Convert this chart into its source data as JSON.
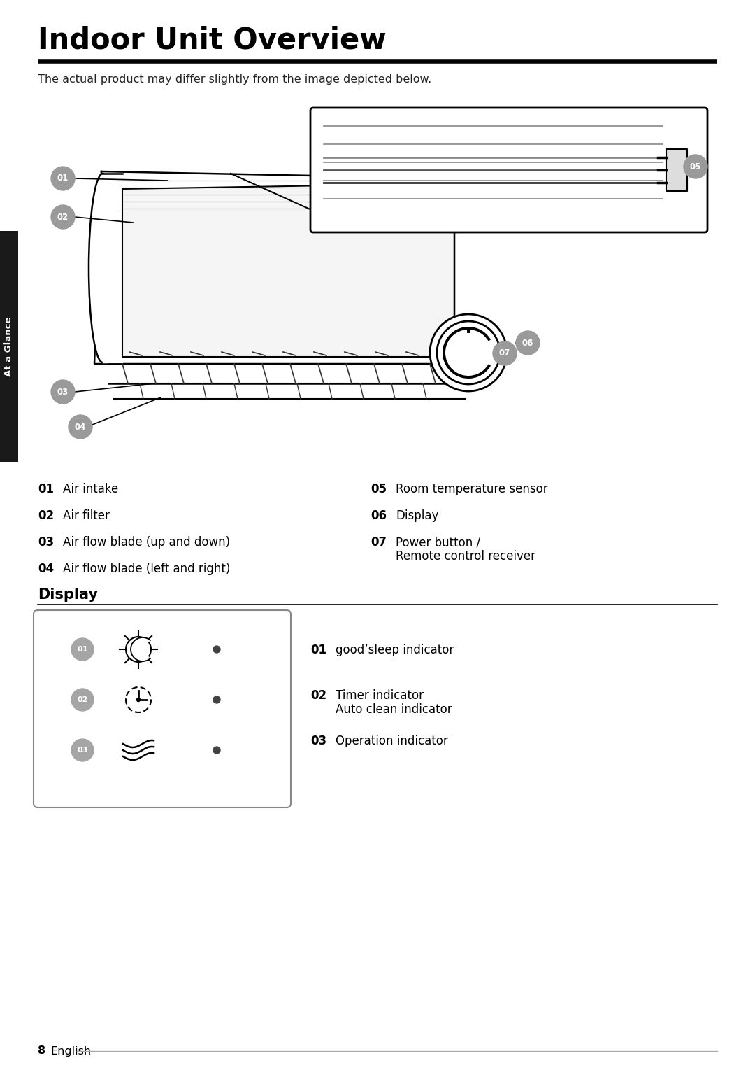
{
  "title": "Indoor Unit Overview",
  "subtitle": "The actual product may differ slightly from the image depicted below.",
  "section2_title": "Display",
  "labels_left": [
    [
      "01",
      "Air intake"
    ],
    [
      "02",
      "Air filter"
    ],
    [
      "03",
      "Air flow blade (up and down)"
    ],
    [
      "04",
      "Air flow blade (left and right)"
    ]
  ],
  "labels_right": [
    [
      "05",
      "Room temperature sensor"
    ],
    [
      "06",
      "Display"
    ],
    [
      "07",
      "Power button /",
      "Remote control receiver"
    ]
  ],
  "display_items": [
    {
      "num": "01",
      "label1": "good’sleep indicator",
      "label2": ""
    },
    {
      "num": "02",
      "label1": "Timer indicator",
      "label2": "Auto clean indicator"
    },
    {
      "num": "03",
      "label1": "Operation indicator",
      "label2": ""
    }
  ],
  "bg_color": "#ffffff",
  "text_color": "#000000",
  "badge_bg": "#9a9a9a",
  "sidebar_color": "#1c6b35",
  "sidebar_text": "At a Glance",
  "title_fontsize": 30,
  "subtitle_fontsize": 11.5,
  "list_fontsize": 12,
  "section_fontsize": 15,
  "footer_page": "8",
  "footer_label": "English"
}
